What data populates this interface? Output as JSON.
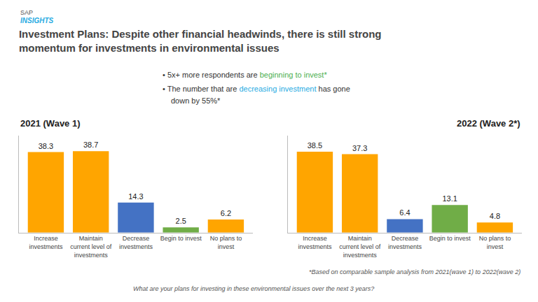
{
  "title": "Investment Plans: Despite other financial headwinds, there is still strong\nmomentum for investments in environmental issues",
  "annotations": [
    {
      "text": "SAP"
    },
    {
      "text": "INSIGHTS",
      "color": "#29ABE2"
    },
    {
      "parts": [
        {
          "text": "• 5x+ more respondents are ",
          "color": "#333333"
        },
        {
          "text": "beginning to invest*",
          "color": "#4CAF50"
        }
      ]
    },
    {
      "parts": [
        {
          "text": "• The number that are ",
          "color": "#333333"
        },
        {
          "text": "decreasing investment",
          "color": "#29ABE2"
        },
        {
          "text": " has gone",
          "color": "#333333"
        }
      ]
    },
    {
      "text": "down by 55%*"
    },
    {
      "text": "*Based on comparable sample analysis from 2021(wave 1) to 2022(wave 2)"
    },
    {
      "text": "What are your plans for investing in these environmental issues over the next 3 years?"
    }
  ],
  "chart_data": [
    {
      "type": "bar",
      "title": "2021 (Wave 1)",
      "categories": [
        "Increase\ninvestments",
        "Maintain\ncurrent level of\ninvestments",
        "Decrease\ninvestments",
        "Begin to invest",
        "No plans to\ninvest"
      ],
      "values": [
        38.3,
        38.7,
        14.3,
        2.5,
        6.2
      ],
      "colors": [
        "#FFA500",
        "#FFA500",
        "#4472C4",
        "#70AD47",
        "#FFA500"
      ],
      "ylim": [
        0,
        46
      ],
      "data_labels": true,
      "tick_labels": "x",
      "grid": false
    },
    {
      "type": "bar",
      "title": "2022 (Wave 2*)",
      "categories": [
        "Increase\ninvestments",
        "Maintain\ncurrent level of\ninvestments",
        "Decrease\ninvestments",
        "Begin to invest",
        "No plans to\ninvest"
      ],
      "values": [
        38.5,
        37.3,
        6.4,
        13.1,
        4.8
      ],
      "colors": [
        "#FFA500",
        "#FFA500",
        "#4472C4",
        "#70AD47",
        "#FFA500"
      ],
      "ylim": [
        0,
        46
      ],
      "data_labels": true,
      "tick_labels": "x",
      "grid": false
    }
  ]
}
